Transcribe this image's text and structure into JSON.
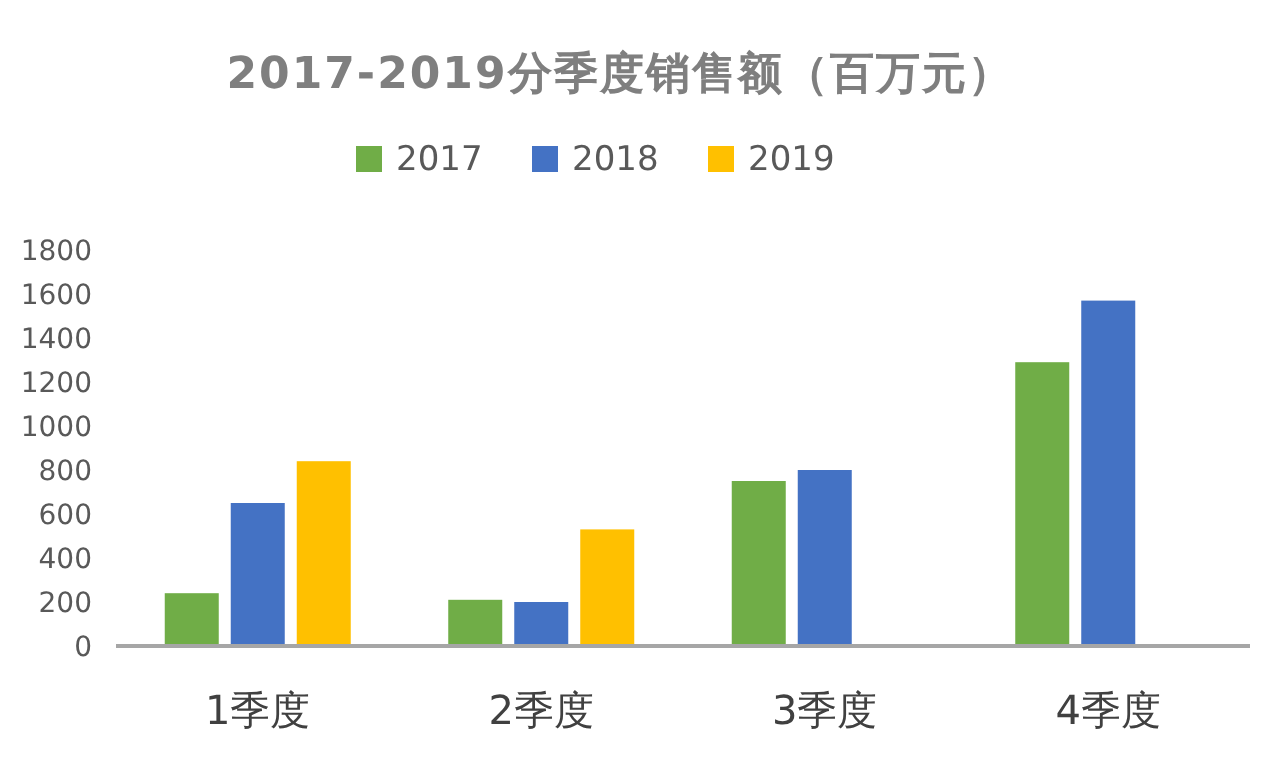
{
  "chart_data": {
    "type": "bar",
    "title": "2017-2019分季度销售额（百万元）",
    "categories": [
      "1季度",
      "2季度",
      "3季度",
      "4季度"
    ],
    "series": [
      {
        "name": "2017",
        "color": "#70ad47",
        "values": [
          240,
          210,
          750,
          1290
        ]
      },
      {
        "name": "2018",
        "color": "#4472c4",
        "values": [
          650,
          200,
          800,
          1570
        ]
      },
      {
        "name": "2019",
        "color": "#ffc000",
        "values": [
          840,
          530,
          null,
          null
        ]
      }
    ],
    "ylim": [
      0,
      1800
    ],
    "yticks": [
      0,
      200,
      400,
      600,
      800,
      1000,
      1200,
      1400,
      1600,
      1800
    ],
    "legend": "top",
    "grid": false
  }
}
